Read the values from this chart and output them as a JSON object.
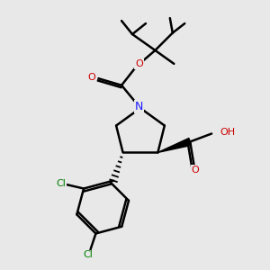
{
  "bg_color": "#e8e8e8",
  "atom_colors": {
    "C": "#000000",
    "N": "#1a1aff",
    "O": "#cc0000",
    "Cl": "#008000",
    "H": "#555555"
  },
  "bond_color": "#000000",
  "bond_width": 1.8,
  "figsize": [
    3.0,
    3.0
  ],
  "dpi": 100
}
